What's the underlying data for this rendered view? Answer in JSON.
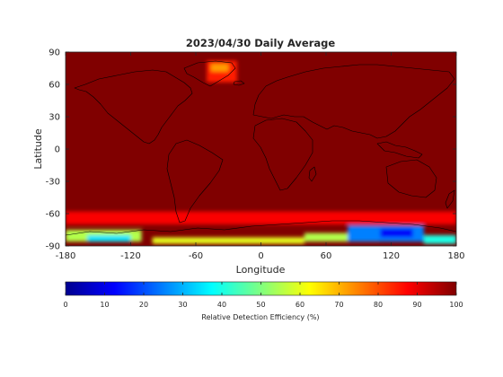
{
  "chart_data": [
    {
      "type": "heatmap",
      "title": "2023/04/30 Daily Average",
      "xlabel": "Longitude",
      "ylabel": "Latitude",
      "xlim": [
        -180,
        180
      ],
      "ylim": [
        -90,
        90
      ],
      "x_ticks": [
        "-180",
        "-120",
        "-60",
        "0",
        "60",
        "120",
        "180"
      ],
      "y_ticks": [
        "90",
        "60",
        "30",
        "0",
        "-30",
        "-60",
        "-90"
      ],
      "background_value": 100,
      "regions": [
        {
          "lon": [
            -50,
            -22
          ],
          "lat": [
            62,
            82
          ],
          "value": 85
        },
        {
          "lon": [
            -46,
            -30
          ],
          "lat": [
            72,
            79
          ],
          "value": 72
        },
        {
          "lon": [
            -180,
            180
          ],
          "lat": [
            -70,
            -58
          ],
          "value": 88
        },
        {
          "lon": [
            -180,
            -110
          ],
          "lat": [
            -86,
            -75
          ],
          "value": 55
        },
        {
          "lon": [
            -160,
            -120
          ],
          "lat": [
            -86,
            -80
          ],
          "value": 35
        },
        {
          "lon": [
            -100,
            40
          ],
          "lat": [
            -88,
            -82
          ],
          "value": 60
        },
        {
          "lon": [
            40,
            110
          ],
          "lat": [
            -86,
            -78
          ],
          "value": 55
        },
        {
          "lon": [
            80,
            150
          ],
          "lat": [
            -86,
            -71
          ],
          "value": 25
        },
        {
          "lon": [
            110,
            140
          ],
          "lat": [
            -82,
            -74
          ],
          "value": 12
        },
        {
          "lon": [
            150,
            180
          ],
          "lat": [
            -88,
            -80
          ],
          "value": 40
        }
      ],
      "grid": false
    },
    {
      "type": "colorbar",
      "label": "Relative Detection Efficiency (%)",
      "ticks": [
        "0",
        "10",
        "20",
        "30",
        "40",
        "50",
        "60",
        "70",
        "80",
        "90",
        "100"
      ],
      "range": [
        0,
        100
      ],
      "colormap": "jet"
    }
  ],
  "colors": {
    "axis": "#262626",
    "coastline": "#000000"
  }
}
